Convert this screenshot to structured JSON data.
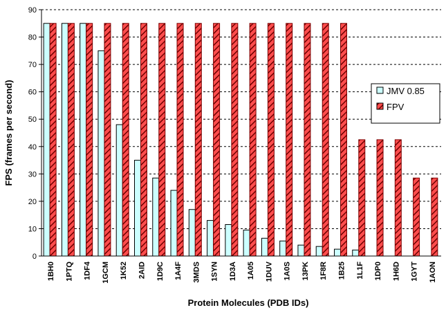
{
  "chart_data": {
    "type": "bar",
    "categories": [
      "1BH0",
      "1PTQ",
      "1DF4",
      "1GCM",
      "1K52",
      "2AID",
      "1D9C",
      "1A4F",
      "3MDS",
      "1SYN",
      "1D3A",
      "1A05",
      "1DUV",
      "1A0S",
      "13PK",
      "1F8R",
      "1B25",
      "1L1F",
      "1DP0",
      "1H6D",
      "1GYT",
      "1AON"
    ],
    "series": [
      {
        "name": "JMV 0.85",
        "color": "#ccffff",
        "values": [
          85,
          85,
          85,
          75,
          48,
          35,
          28.5,
          24,
          17,
          13,
          11.5,
          9.5,
          6.5,
          5.5,
          4,
          3.5,
          2.5,
          2.2,
          null,
          null,
          null,
          null
        ]
      },
      {
        "name": "FPV",
        "color": "#ff5555",
        "pattern": "diagonal-hatch",
        "values": [
          85,
          85,
          85,
          85,
          85,
          85,
          85,
          85,
          85,
          85,
          85,
          85,
          85,
          85,
          85,
          85,
          85,
          42.5,
          42.5,
          42.5,
          28.5,
          28.5
        ]
      }
    ],
    "title": "",
    "xlabel": "Protein Molecules (PDB IDs)",
    "ylabel": "FPS (frames per second)",
    "ylim": [
      0,
      90
    ],
    "yticks": [
      0,
      10,
      20,
      30,
      40,
      50,
      60,
      70,
      80,
      90
    ],
    "grid": "horizontal-dashed",
    "legend": "right"
  }
}
